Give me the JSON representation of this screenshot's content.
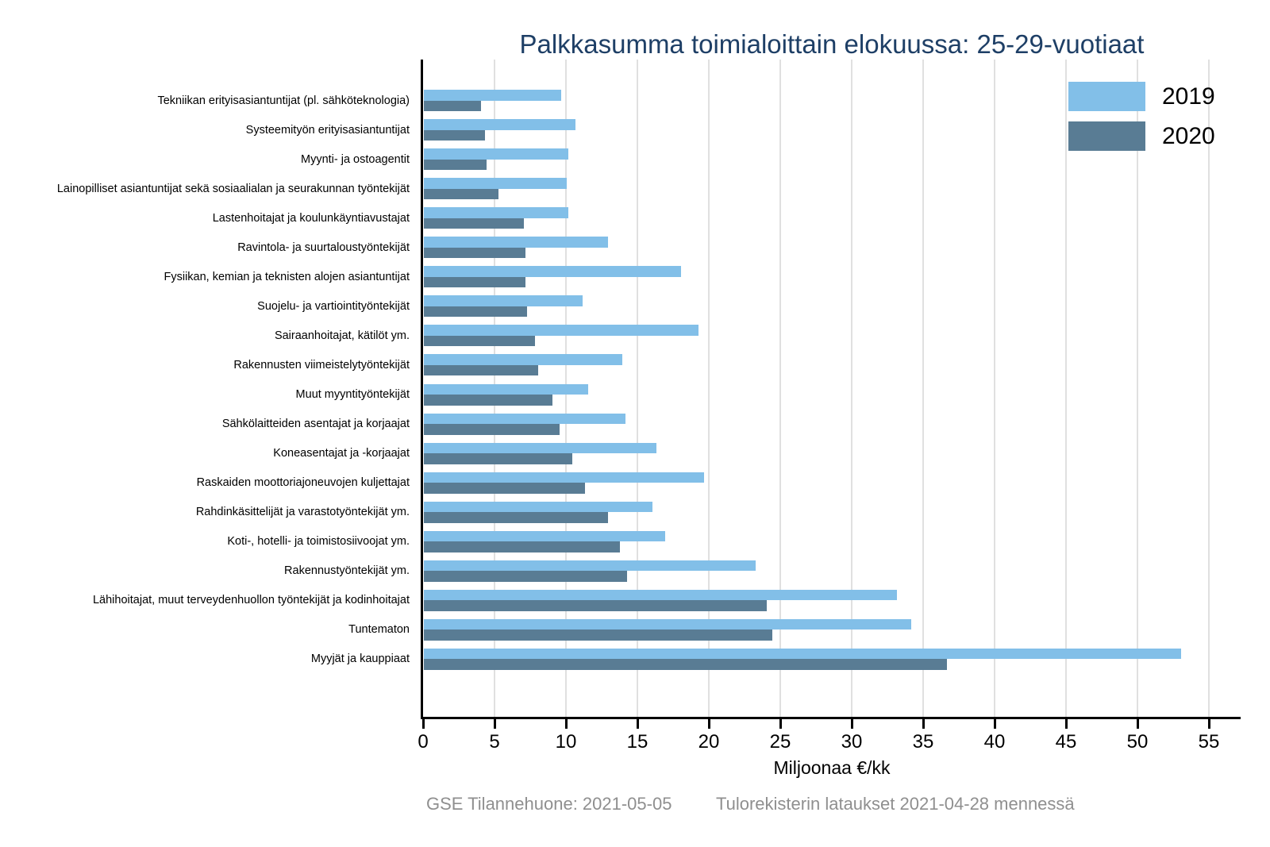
{
  "title": "Palkkasumma toimialoittain elokuussa: 25-29-vuotiaat",
  "xlabel": "Miljoonaa €/kk",
  "footer": {
    "left": "GSE Tilannehuone: 2021-05-05",
    "right": "Tulorekisterin lataukset 2021-04-28 mennessä"
  },
  "colors": {
    "series2019": "#82bfe8",
    "series2020": "#597c94",
    "title": "#1e3f66",
    "gridline": "#e0e0e0",
    "axis": "#000000",
    "footer": "#8f8f8f"
  },
  "chart_data": {
    "type": "bar",
    "orientation": "horizontal",
    "title": "Palkkasumma toimialoittain elokuussa: 25-29-vuotiaat",
    "xlabel": "Miljoonaa €/kk",
    "ylabel": "",
    "xlim": [
      0,
      57.2
    ],
    "xticks": [
      0,
      5,
      10,
      15,
      20,
      25,
      30,
      35,
      40,
      45,
      50,
      55
    ],
    "grid": true,
    "legend_position": "top-right",
    "categories": [
      "Tekniikan erityisasiantuntijat (pl. sähköteknologia)",
      "Systeemityön erityisasiantuntijat",
      "Myynti- ja ostoagentit",
      "Lainopilliset asiantuntijat sekä sosiaalialan ja seurakunnan työntekijät",
      "Lastenhoitajat ja koulunkäyntiavustajat",
      "Ravintola- ja suurtaloustyöntekijät",
      "Fysiikan, kemian ja teknisten alojen asiantuntijat",
      "Suojelu- ja vartiointityöntekijät",
      "Sairaanhoitajat, kätilöt ym.",
      "Rakennusten viimeistelytyöntekijät",
      "Muut myyntityöntekijät",
      "Sähkölaitteiden asentajat ja korjaajat",
      "Koneasentajat ja -korjaajat",
      "Raskaiden moottoriajoneuvojen kuljettajat",
      "Rahdinkäsittelijät ja varastotyöntekijät ym.",
      "Koti-, hotelli- ja toimistosiivoojat ym.",
      "Rakennustyöntekijät ym.",
      "Lähihoitajat, muut terveydenhuollon työntekijät ja kodinhoitajat",
      "Tuntematon",
      "Myyjät ja kauppiaat"
    ],
    "series": [
      {
        "name": "2019",
        "color": "#82bfe8",
        "values": [
          9.6,
          10.6,
          10.1,
          10.0,
          10.1,
          12.9,
          18.0,
          11.1,
          19.2,
          13.9,
          11.5,
          14.1,
          16.3,
          19.6,
          16.0,
          16.9,
          23.2,
          33.1,
          34.1,
          53.0
        ]
      },
      {
        "name": "2020",
        "color": "#597c94",
        "values": [
          4.0,
          4.3,
          4.4,
          5.2,
          7.0,
          7.1,
          7.1,
          7.2,
          7.8,
          8.0,
          9.0,
          9.5,
          10.4,
          11.3,
          12.9,
          13.7,
          14.2,
          24.0,
          24.4,
          36.6
        ]
      }
    ]
  }
}
